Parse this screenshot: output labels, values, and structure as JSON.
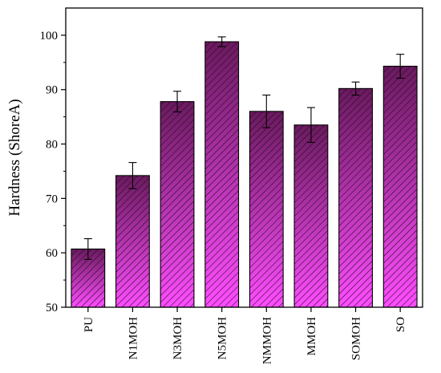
{
  "chart_data": {
    "type": "bar",
    "title": "",
    "xlabel": "",
    "ylabel": "Hardness (ShoreA)",
    "ylim": [
      50,
      105
    ],
    "yticks": [
      50,
      60,
      70,
      80,
      90,
      100
    ],
    "categories": [
      "PU",
      "N1MOH",
      "N3MOH",
      "N5MOH",
      "NMMOH",
      "MMOH",
      "SOMOH",
      "SO"
    ],
    "values": [
      60.7,
      74.2,
      87.8,
      98.8,
      86.0,
      83.5,
      90.2,
      94.3
    ],
    "errors": [
      1.9,
      2.4,
      1.9,
      0.9,
      3.0,
      3.2,
      1.2,
      2.2
    ],
    "grid": false,
    "bar_fill": "hatched gradient",
    "colors": {
      "bar_top": "#6a1a5e",
      "bar_bottom": "#ff4dff",
      "hatch": "#1a0a1a",
      "axis": "#000000"
    }
  }
}
